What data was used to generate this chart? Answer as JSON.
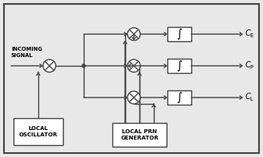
{
  "bg_color": "#e8e8e8",
  "border_color": "#444444",
  "line_color": "#444444",
  "box_color": "#ffffff",
  "text_color": "#000000",
  "fig_width": 3.3,
  "fig_height": 1.98,
  "dpi": 100,
  "incoming_signal_label": "INCOMING\nSIGNAL",
  "local_osc_label": "LOCAL\nOSCILLATOR",
  "local_prn_label": "LOCAL PRN\nGENERATOR",
  "ce_sub": "E",
  "cp_sub": "P",
  "cl_sub": "L",
  "integral_symbol": "∫"
}
